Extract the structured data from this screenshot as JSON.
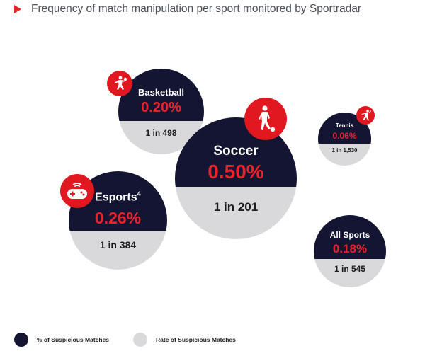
{
  "title": "Frequency of match manipulation per sport monitored by Sportradar",
  "colors": {
    "suspicious_pct": "#141533",
    "suspicious_rate": "#d9d9dc",
    "accent": "#e1181f",
    "pct_text": "#f0202a"
  },
  "chart_data": {
    "type": "bubble",
    "title": "Frequency of match manipulation per sport monitored by Sportradar",
    "legend": [
      {
        "label": "% of Suspicious Matches",
        "color": "#141533"
      },
      {
        "label": "Rate of Suspicious Matches",
        "color": "#d9d9dc"
      }
    ],
    "legend_position": "bottom-left",
    "sports": [
      {
        "name": "Basketball",
        "percent": 0.2,
        "percent_label": "0.20%",
        "rate_label": "1 in 498",
        "icon": "basketball-player-icon"
      },
      {
        "name": "Soccer",
        "percent": 0.5,
        "percent_label": "0.50%",
        "rate_label": "1 in 201",
        "icon": "soccer-player-icon"
      },
      {
        "name": "Tennis",
        "percent": 0.06,
        "percent_label": "0.06%",
        "rate_label": "1 in 1,530",
        "icon": "tennis-player-icon"
      },
      {
        "name": "Esports",
        "footnote": "4",
        "percent": 0.26,
        "percent_label": "0.26%",
        "rate_label": "1 in 384",
        "icon": "gamepad-icon"
      },
      {
        "name": "All Sports",
        "percent": 0.18,
        "percent_label": "0.18%",
        "rate_label": "1 in 545"
      }
    ]
  }
}
